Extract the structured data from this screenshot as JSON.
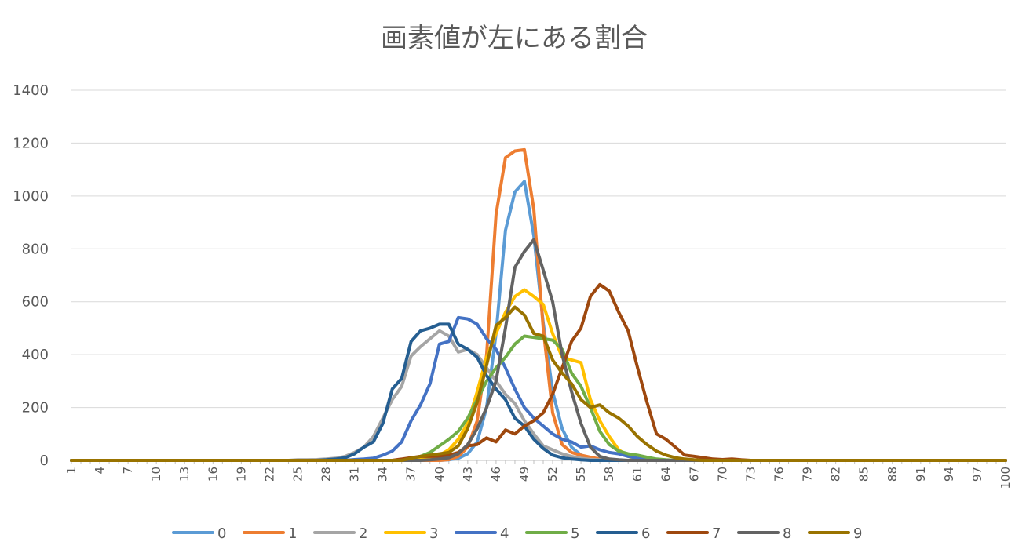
{
  "chart_data": {
    "type": "line",
    "title": "画素値が左にある割合",
    "xlabel": "",
    "ylabel": "",
    "ylim": [
      0,
      1400
    ],
    "yticks": [
      "0",
      "200",
      "400",
      "600",
      "800",
      "1000",
      "1200",
      "1400"
    ],
    "x_start": 1,
    "x_end": 100,
    "xtick_labels": [
      "1",
      "4",
      "7",
      "10",
      "13",
      "16",
      "19",
      "22",
      "25",
      "28",
      "31",
      "34",
      "37",
      "40",
      "43",
      "46",
      "49",
      "52",
      "55",
      "58",
      "61",
      "64",
      "67",
      "70",
      "73",
      "76",
      "79",
      "82",
      "85",
      "88",
      "91",
      "94",
      "97",
      "100"
    ],
    "grid": true,
    "legend_position": "bottom",
    "colors": [
      "#5b9bd5",
      "#ed7d31",
      "#a5a5a5",
      "#ffc000",
      "#4472c4",
      "#70ad47",
      "#255e91",
      "#9e480e",
      "#636363",
      "#997300"
    ],
    "series": [
      {
        "name": "0",
        "peaks": [
          [
            1,
            0
          ],
          [
            40,
            0
          ],
          [
            41,
            2
          ],
          [
            42,
            8
          ],
          [
            43,
            25
          ],
          [
            44,
            70
          ],
          [
            45,
            200
          ],
          [
            46,
            480
          ],
          [
            47,
            870
          ],
          [
            48,
            1015
          ],
          [
            49,
            1055
          ],
          [
            50,
            850
          ],
          [
            51,
            520
          ],
          [
            52,
            260
          ],
          [
            53,
            120
          ],
          [
            54,
            50
          ],
          [
            55,
            20
          ],
          [
            56,
            8
          ],
          [
            57,
            2
          ],
          [
            58,
            0
          ],
          [
            100,
            0
          ]
        ]
      },
      {
        "name": "1",
        "peaks": [
          [
            1,
            0
          ],
          [
            40,
            0
          ],
          [
            41,
            3
          ],
          [
            42,
            15
          ],
          [
            43,
            50
          ],
          [
            44,
            150
          ],
          [
            45,
            400
          ],
          [
            46,
            930
          ],
          [
            47,
            1145
          ],
          [
            48,
            1170
          ],
          [
            49,
            1175
          ],
          [
            50,
            950
          ],
          [
            51,
            500
          ],
          [
            52,
            180
          ],
          [
            53,
            60
          ],
          [
            54,
            30
          ],
          [
            55,
            20
          ],
          [
            56,
            12
          ],
          [
            57,
            5
          ],
          [
            58,
            0
          ],
          [
            100,
            0
          ]
        ]
      },
      {
        "name": "2",
        "peaks": [
          [
            1,
            0
          ],
          [
            24,
            0
          ],
          [
            25,
            2
          ],
          [
            27,
            3
          ],
          [
            28,
            5
          ],
          [
            29,
            8
          ],
          [
            30,
            15
          ],
          [
            31,
            30
          ],
          [
            32,
            50
          ],
          [
            33,
            90
          ],
          [
            34,
            160
          ],
          [
            35,
            230
          ],
          [
            36,
            280
          ],
          [
            37,
            395
          ],
          [
            38,
            430
          ],
          [
            39,
            460
          ],
          [
            40,
            490
          ],
          [
            41,
            470
          ],
          [
            42,
            410
          ],
          [
            43,
            420
          ],
          [
            44,
            400
          ],
          [
            45,
            350
          ],
          [
            46,
            300
          ],
          [
            47,
            250
          ],
          [
            48,
            215
          ],
          [
            49,
            150
          ],
          [
            50,
            100
          ],
          [
            51,
            55
          ],
          [
            52,
            40
          ],
          [
            53,
            25
          ],
          [
            54,
            15
          ],
          [
            55,
            8
          ],
          [
            56,
            4
          ],
          [
            57,
            2
          ],
          [
            58,
            0
          ],
          [
            100,
            0
          ]
        ]
      },
      {
        "name": "3",
        "peaks": [
          [
            1,
            0
          ],
          [
            37,
            0
          ],
          [
            38,
            5
          ],
          [
            39,
            10
          ],
          [
            40,
            20
          ],
          [
            41,
            40
          ],
          [
            42,
            80
          ],
          [
            43,
            140
          ],
          [
            44,
            260
          ],
          [
            45,
            390
          ],
          [
            46,
            480
          ],
          [
            47,
            560
          ],
          [
            48,
            620
          ],
          [
            49,
            645
          ],
          [
            50,
            620
          ],
          [
            51,
            590
          ],
          [
            52,
            480
          ],
          [
            53,
            390
          ],
          [
            54,
            380
          ],
          [
            55,
            370
          ],
          [
            56,
            230
          ],
          [
            57,
            150
          ],
          [
            58,
            90
          ],
          [
            59,
            40
          ],
          [
            60,
            15
          ],
          [
            61,
            5
          ],
          [
            62,
            0
          ],
          [
            100,
            0
          ]
        ]
      },
      {
        "name": "4",
        "peaks": [
          [
            1,
            0
          ],
          [
            30,
            0
          ],
          [
            31,
            3
          ],
          [
            32,
            5
          ],
          [
            33,
            8
          ],
          [
            34,
            20
          ],
          [
            35,
            35
          ],
          [
            36,
            70
          ],
          [
            37,
            150
          ],
          [
            38,
            210
          ],
          [
            39,
            290
          ],
          [
            40,
            440
          ],
          [
            41,
            450
          ],
          [
            42,
            540
          ],
          [
            43,
            535
          ],
          [
            44,
            515
          ],
          [
            45,
            460
          ],
          [
            46,
            420
          ],
          [
            47,
            350
          ],
          [
            48,
            270
          ],
          [
            49,
            200
          ],
          [
            50,
            160
          ],
          [
            51,
            130
          ],
          [
            52,
            100
          ],
          [
            53,
            80
          ],
          [
            54,
            70
          ],
          [
            55,
            50
          ],
          [
            56,
            55
          ],
          [
            57,
            40
          ],
          [
            58,
            30
          ],
          [
            59,
            25
          ],
          [
            60,
            15
          ],
          [
            61,
            8
          ],
          [
            62,
            3
          ],
          [
            63,
            0
          ],
          [
            100,
            0
          ]
        ]
      },
      {
        "name": "5",
        "peaks": [
          [
            1,
            0
          ],
          [
            35,
            0
          ],
          [
            36,
            3
          ],
          [
            37,
            8
          ],
          [
            38,
            15
          ],
          [
            39,
            30
          ],
          [
            40,
            55
          ],
          [
            41,
            80
          ],
          [
            42,
            110
          ],
          [
            43,
            160
          ],
          [
            44,
            230
          ],
          [
            45,
            300
          ],
          [
            46,
            350
          ],
          [
            47,
            390
          ],
          [
            48,
            440
          ],
          [
            49,
            470
          ],
          [
            50,
            465
          ],
          [
            51,
            460
          ],
          [
            52,
            455
          ],
          [
            53,
            420
          ],
          [
            54,
            330
          ],
          [
            55,
            280
          ],
          [
            56,
            200
          ],
          [
            57,
            110
          ],
          [
            58,
            60
          ],
          [
            59,
            35
          ],
          [
            60,
            25
          ],
          [
            61,
            20
          ],
          [
            62,
            12
          ],
          [
            63,
            5
          ],
          [
            64,
            2
          ],
          [
            65,
            0
          ],
          [
            100,
            0
          ]
        ]
      },
      {
        "name": "6",
        "peaks": [
          [
            1,
            0
          ],
          [
            27,
            0
          ],
          [
            28,
            2
          ],
          [
            29,
            5
          ],
          [
            30,
            10
          ],
          [
            31,
            25
          ],
          [
            32,
            50
          ],
          [
            33,
            70
          ],
          [
            34,
            140
          ],
          [
            35,
            270
          ],
          [
            36,
            310
          ],
          [
            37,
            450
          ],
          [
            38,
            490
          ],
          [
            39,
            500
          ],
          [
            40,
            515
          ],
          [
            41,
            515
          ],
          [
            42,
            440
          ],
          [
            43,
            420
          ],
          [
            44,
            390
          ],
          [
            45,
            320
          ],
          [
            46,
            270
          ],
          [
            47,
            230
          ],
          [
            48,
            160
          ],
          [
            49,
            130
          ],
          [
            50,
            80
          ],
          [
            51,
            45
          ],
          [
            52,
            20
          ],
          [
            53,
            10
          ],
          [
            54,
            5
          ],
          [
            55,
            2
          ],
          [
            56,
            0
          ],
          [
            100,
            0
          ]
        ]
      },
      {
        "name": "7",
        "peaks": [
          [
            1,
            0
          ],
          [
            35,
            0
          ],
          [
            36,
            5
          ],
          [
            37,
            10
          ],
          [
            38,
            15
          ],
          [
            39,
            15
          ],
          [
            40,
            15
          ],
          [
            41,
            20
          ],
          [
            42,
            30
          ],
          [
            43,
            55
          ],
          [
            44,
            60
          ],
          [
            45,
            85
          ],
          [
            46,
            70
          ],
          [
            47,
            115
          ],
          [
            48,
            100
          ],
          [
            49,
            130
          ],
          [
            50,
            150
          ],
          [
            51,
            180
          ],
          [
            52,
            250
          ],
          [
            53,
            350
          ],
          [
            54,
            450
          ],
          [
            55,
            500
          ],
          [
            56,
            620
          ],
          [
            57,
            665
          ],
          [
            58,
            640
          ],
          [
            59,
            560
          ],
          [
            60,
            490
          ],
          [
            61,
            350
          ],
          [
            62,
            220
          ],
          [
            63,
            100
          ],
          [
            64,
            80
          ],
          [
            65,
            50
          ],
          [
            66,
            20
          ],
          [
            67,
            15
          ],
          [
            68,
            10
          ],
          [
            69,
            5
          ],
          [
            70,
            3
          ],
          [
            71,
            5
          ],
          [
            72,
            2
          ],
          [
            73,
            0
          ],
          [
            100,
            0
          ]
        ]
      },
      {
        "name": "8",
        "peaks": [
          [
            1,
            0
          ],
          [
            38,
            0
          ],
          [
            39,
            2
          ],
          [
            40,
            5
          ],
          [
            41,
            10
          ],
          [
            42,
            25
          ],
          [
            43,
            60
          ],
          [
            44,
            120
          ],
          [
            45,
            200
          ],
          [
            46,
            300
          ],
          [
            47,
            500
          ],
          [
            48,
            730
          ],
          [
            49,
            790
          ],
          [
            50,
            835
          ],
          [
            51,
            720
          ],
          [
            52,
            600
          ],
          [
            53,
            400
          ],
          [
            54,
            260
          ],
          [
            55,
            140
          ],
          [
            56,
            50
          ],
          [
            57,
            15
          ],
          [
            58,
            5
          ],
          [
            59,
            2
          ],
          [
            60,
            0
          ],
          [
            100,
            0
          ]
        ]
      },
      {
        "name": "9",
        "peaks": [
          [
            1,
            0
          ],
          [
            36,
            0
          ],
          [
            37,
            8
          ],
          [
            38,
            15
          ],
          [
            39,
            20
          ],
          [
            40,
            25
          ],
          [
            41,
            30
          ],
          [
            42,
            55
          ],
          [
            43,
            120
          ],
          [
            44,
            220
          ],
          [
            45,
            360
          ],
          [
            46,
            510
          ],
          [
            47,
            540
          ],
          [
            48,
            580
          ],
          [
            49,
            550
          ],
          [
            50,
            480
          ],
          [
            51,
            470
          ],
          [
            52,
            380
          ],
          [
            53,
            330
          ],
          [
            54,
            290
          ],
          [
            55,
            230
          ],
          [
            56,
            200
          ],
          [
            57,
            210
          ],
          [
            58,
            180
          ],
          [
            59,
            160
          ],
          [
            60,
            130
          ],
          [
            61,
            90
          ],
          [
            62,
            60
          ],
          [
            63,
            35
          ],
          [
            64,
            20
          ],
          [
            65,
            10
          ],
          [
            66,
            5
          ],
          [
            67,
            2
          ],
          [
            68,
            0
          ],
          [
            100,
            0
          ]
        ]
      }
    ]
  }
}
